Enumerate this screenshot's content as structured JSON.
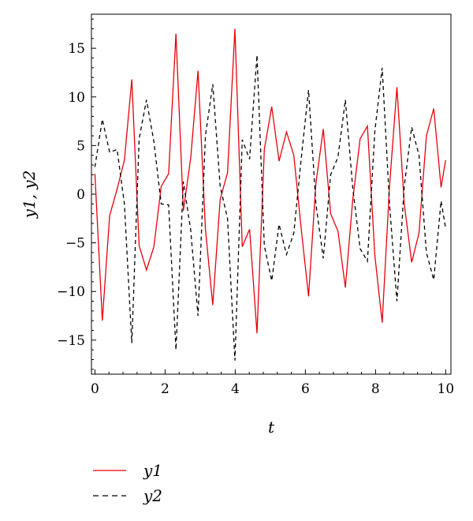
{
  "chart_data": {
    "type": "line",
    "xlabel": "t",
    "ylabel": "y1, y2",
    "xlim": [
      -0.1,
      10.15
    ],
    "ylim": [
      -18.5,
      18.5
    ],
    "xticks": [
      0,
      2,
      4,
      6,
      8,
      10
    ],
    "yticks": [
      -15,
      -10,
      -5,
      0,
      5,
      10,
      15
    ],
    "xtick_labels": [
      "0",
      "2",
      "4",
      "6",
      "8",
      "10"
    ],
    "ytick_labels": [
      "−15",
      "−10",
      "−5",
      "0",
      "5",
      "10",
      "15"
    ],
    "grid": false,
    "legend_position": "bottom-left",
    "series": [
      {
        "name": "y1",
        "color": "#e8000b",
        "dash": "solid",
        "x": [
          0,
          0.21,
          0.42,
          0.63,
          0.84,
          1.05,
          1.26,
          1.47,
          1.68,
          1.89,
          2.1,
          2.31,
          2.52,
          2.73,
          2.94,
          3.15,
          3.36,
          3.57,
          3.78,
          3.99,
          4.2,
          4.41,
          4.62,
          4.83,
          5.04,
          5.25,
          5.46,
          5.67,
          5.88,
          6.09,
          6.3,
          6.51,
          6.72,
          6.93,
          7.14,
          7.35,
          7.56,
          7.77,
          7.98,
          8.19,
          8.4,
          8.61,
          8.82,
          9.03,
          9.24,
          9.45,
          9.66,
          9.87,
          10
        ],
        "y": [
          2.1,
          -13.0,
          -2.2,
          0.5,
          3.5,
          11.8,
          -5.3,
          -7.8,
          -5.4,
          0.8,
          2.1,
          16.5,
          -1.7,
          3.7,
          12.7,
          -3.6,
          -11.4,
          -0.5,
          2.2,
          17.0,
          -5.4,
          -3.6,
          -14.3,
          4.6,
          9.0,
          3.4,
          6.4,
          4.0,
          -3.5,
          -10.5,
          1.1,
          6.7,
          -2.0,
          -3.8,
          -9.6,
          -0.6,
          5.7,
          7.0,
          -6.3,
          -13.2,
          0.8,
          11.0,
          -1.0,
          -7.0,
          -4.0,
          6.0,
          8.8,
          0.7,
          3.5
        ]
      },
      {
        "name": "y2",
        "color": "#000000",
        "dash": "dashed",
        "x": [
          0,
          0.21,
          0.42,
          0.63,
          0.84,
          1.05,
          1.26,
          1.47,
          1.68,
          1.89,
          2.1,
          2.31,
          2.52,
          2.73,
          2.94,
          3.15,
          3.36,
          3.57,
          3.78,
          3.99,
          4.2,
          4.41,
          4.62,
          4.83,
          5.04,
          5.25,
          5.46,
          5.67,
          5.88,
          6.09,
          6.3,
          6.51,
          6.72,
          6.93,
          7.14,
          7.35,
          7.56,
          7.77,
          7.98,
          8.19,
          8.4,
          8.61,
          8.82,
          9.03,
          9.24,
          9.45,
          9.66,
          9.87,
          10
        ],
        "y": [
          2.8,
          7.7,
          4.3,
          4.6,
          -1.0,
          -15.3,
          5.7,
          9.7,
          5.4,
          -1.0,
          -1.1,
          -16.0,
          1.3,
          -3.7,
          -12.5,
          6.0,
          11.3,
          0.8,
          -2.5,
          -17.1,
          5.6,
          3.6,
          14.3,
          -5.3,
          -8.9,
          -3.1,
          -6.2,
          -4.0,
          3.6,
          10.7,
          -1.0,
          -6.6,
          2.0,
          3.8,
          9.7,
          0.7,
          -5.6,
          -6.9,
          6.5,
          13.0,
          -1.0,
          -11.0,
          0.8,
          6.9,
          4.0,
          -6.0,
          -8.8,
          -0.7,
          -3.5
        ]
      }
    ]
  }
}
